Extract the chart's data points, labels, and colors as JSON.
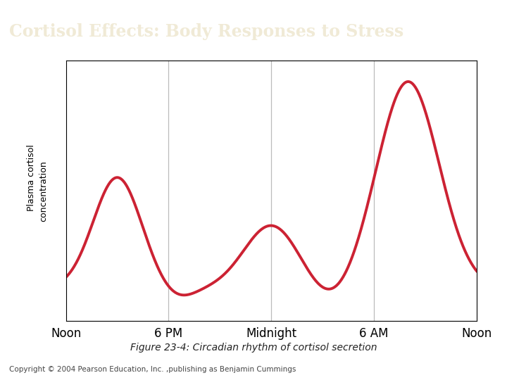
{
  "title": "Cortisol Effects: Body Responses to Stress",
  "title_bg_color": "#3a7575",
  "title_text_color": "#f0ead6",
  "figure_caption": "Figure 23-4: Circadian rhythm of cortisol secretion",
  "copyright": "Copyright © 2004 Pearson Education, Inc. ,publishing as Benjamin Cummings",
  "ylabel_line1": "Plasma cortisol",
  "ylabel_line2": "concentration",
  "x_tick_labels": [
    "Noon",
    "6 PM",
    "Midnight",
    "6 AM",
    "Noon"
  ],
  "x_tick_positions": [
    0,
    6,
    12,
    18,
    24
  ],
  "line_color": "#cc2233",
  "line_width": 2.8,
  "bg_color": "#ffffff",
  "plot_bg_color": "#ffffff",
  "grid_color": "#bbbbbb",
  "ylim": [
    0,
    1
  ],
  "xlim": [
    0,
    24
  ],
  "title_fontsize": 17,
  "caption_fontsize": 10,
  "copyright_fontsize": 7.5,
  "tick_fontsize": 12,
  "ylabel_fontsize": 9
}
